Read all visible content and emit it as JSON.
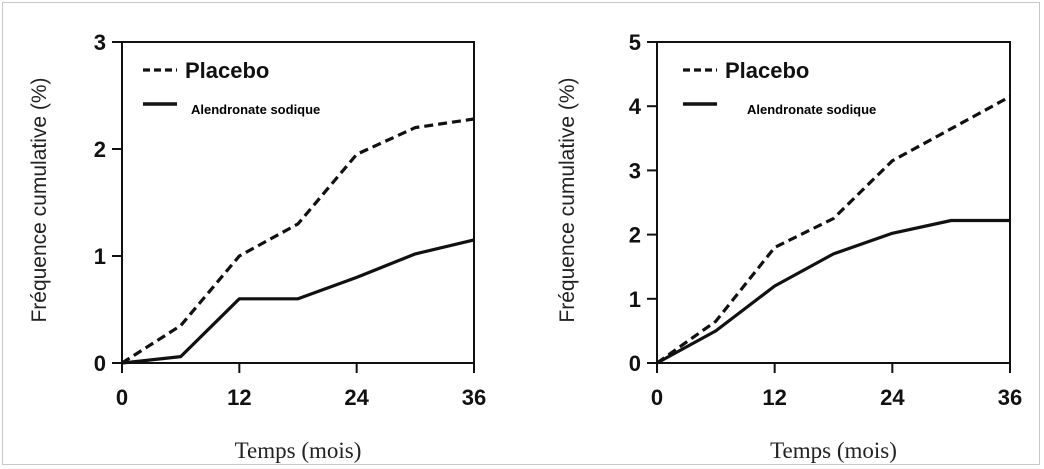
{
  "chart_data": [
    {
      "type": "line",
      "ylabel": "Fréquence cumulative (%)",
      "xlabel": "Temps (mois)",
      "xlim": [
        0,
        36
      ],
      "ylim": [
        0,
        3
      ],
      "xticks": [
        0,
        12,
        24,
        36
      ],
      "yticks": [
        0,
        1,
        2,
        3
      ],
      "legend_position": "top-left",
      "x": [
        0,
        6,
        12,
        18,
        24,
        30,
        36
      ],
      "series": [
        {
          "name": "Placebo",
          "style": "dashed",
          "values": [
            0,
            0.35,
            1.0,
            1.3,
            1.95,
            2.2,
            2.28
          ]
        },
        {
          "name": "Alendronate sodique",
          "style": "solid",
          "values": [
            0,
            0.06,
            0.6,
            0.6,
            0.8,
            1.02,
            1.15
          ]
        }
      ]
    },
    {
      "type": "line",
      "ylabel": "Fréquence cumulative (%)",
      "xlabel": "Temps (mois)",
      "xlim": [
        0,
        36
      ],
      "ylim": [
        0,
        5
      ],
      "xticks": [
        0,
        12,
        24,
        36
      ],
      "yticks": [
        0,
        1,
        2,
        3,
        4,
        5
      ],
      "legend_position": "top-left",
      "x": [
        0,
        6,
        12,
        18,
        24,
        30,
        36
      ],
      "series": [
        {
          "name": "Placebo",
          "style": "dashed",
          "values": [
            0,
            0.65,
            1.8,
            2.25,
            3.15,
            3.65,
            4.15
          ]
        },
        {
          "name": "Alendronate sodique",
          "style": "solid",
          "values": [
            0,
            0.5,
            1.2,
            1.7,
            2.02,
            2.22,
            2.22
          ]
        }
      ]
    }
  ],
  "colors": {
    "line": "#111111",
    "axis": "#111111"
  }
}
